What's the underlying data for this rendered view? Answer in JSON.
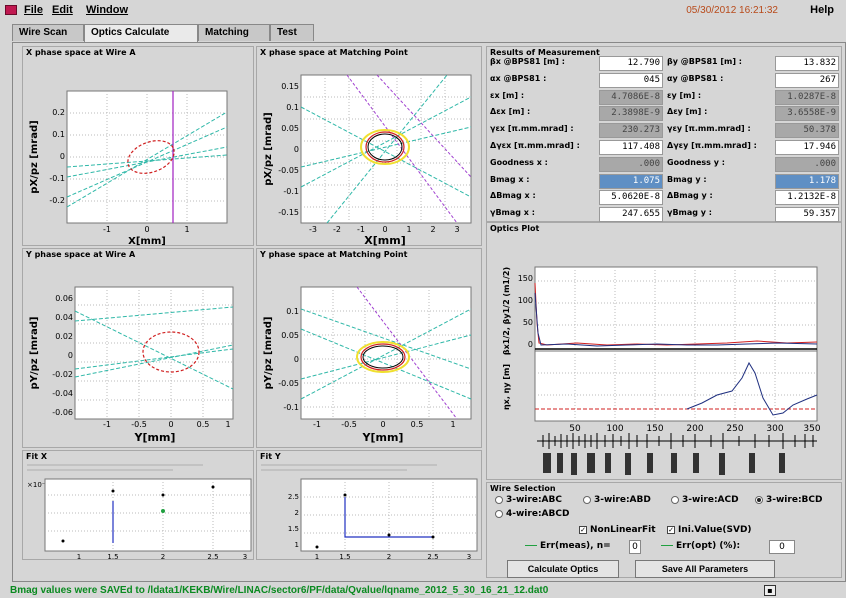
{
  "menubar": {
    "file": "File",
    "edit": "Edit",
    "window": "Window",
    "timestamp": "05/30/2012 16:21:32",
    "help": "Help"
  },
  "tabs": [
    "Wire Scan",
    "Optics Calculate",
    "Matching",
    "Test"
  ],
  "active_tab": "Optics Calculate",
  "plots": {
    "xa": {
      "title": "X phase space at Wire A",
      "xlabel": "X[mm]",
      "ylabel": "pX/pz [mrad]",
      "yticks": [
        "0.2",
        "0.1",
        "0",
        "-0.1",
        "-0.2"
      ],
      "xticks": [
        "-1",
        "0",
        "1"
      ]
    },
    "xm": {
      "title": "X phase space at Matching Point",
      "xlabel": "X[mm]",
      "ylabel": "pX/pz [mrad]",
      "yticks": [
        "0.15",
        "0.1",
        "0.05",
        "0",
        "-0.05",
        "-0.1",
        "-0.15"
      ],
      "xticks": [
        "-3",
        "-2",
        "-1",
        "0",
        "1",
        "2",
        "3"
      ]
    },
    "ya": {
      "title": "Y phase space at Wire A",
      "xlabel": "Y[mm]",
      "ylabel": "pY/pz [mrad]",
      "yticks": [
        "0.06",
        "0.04",
        "0.02",
        "0",
        "-0.02",
        "-0.04",
        "-0.06"
      ],
      "xticks": [
        "-1",
        "-0.5",
        "0",
        "0.5",
        "1"
      ]
    },
    "ym": {
      "title": "Y phase space at Matching Point",
      "xlabel": "Y[mm]",
      "ylabel": "pY/pz [mrad]",
      "yticks": [
        "0.1",
        "0.05",
        "0",
        "-0.05",
        "-0.1"
      ],
      "xticks": [
        "-1",
        "-0.5",
        "0",
        "0.5",
        "1"
      ]
    },
    "fitx": {
      "title": "Fit X",
      "xticks": [
        "1",
        "1.5",
        "2",
        "2.5",
        "3"
      ]
    },
    "fity": {
      "title": "Fit Y",
      "yticks": [
        "2.5",
        "2",
        "1.5",
        "1"
      ],
      "xticks": [
        "1",
        "1.5",
        "2",
        "2.5",
        "3"
      ]
    }
  },
  "results": {
    "title": "Results of Measurement",
    "rows": [
      {
        "lx": "βx @BPS81 [m] :",
        "vx": "12.790",
        "ly": "βy @BPS81 [m] :",
        "vy": "13.832",
        "cx": "",
        "cy": ""
      },
      {
        "lx": "αx @BPS81 :",
        "vx": "045",
        "ly": "αy @BPS81 :",
        "vy": "267",
        "cx": "",
        "cy": ""
      },
      {
        "lx": "εx [m] :",
        "vx": "4.7086E-8",
        "ly": "εy [m] :",
        "vy": "1.0287E-8",
        "cx": "grey",
        "cy": "grey"
      },
      {
        "lx": "Δεx [m] :",
        "vx": "2.3898E-9",
        "ly": "Δεy [m] :",
        "vy": "3.6558E-9",
        "cx": "grey",
        "cy": "grey"
      },
      {
        "lx": "γεx [π.mm.mrad] :",
        "vx": "230.273",
        "ly": "γεy [π.mm.mrad] :",
        "vy": "50.378",
        "cx": "grey",
        "cy": "grey"
      },
      {
        "lx": "Δγεx [π.mm.mrad] :",
        "vx": "117.408",
        "ly": "Δγεy [π.mm.mrad] :",
        "vy": "17.946",
        "cx": "",
        "cy": ""
      },
      {
        "lx": "Goodness x :",
        "vx": ".000",
        "ly": "Goodness y :",
        "vy": ".000",
        "cx": "grey",
        "cy": "grey"
      },
      {
        "lx": "Bmag x :",
        "vx": "1.075",
        "ly": "Bmag y :",
        "vy": "1.178",
        "cx": "blue",
        "cy": "blue"
      },
      {
        "lx": "ΔBmag x :",
        "vx": "5.0620E-8",
        "ly": "ΔBmag y :",
        "vy": "1.2132E-8",
        "cx": "",
        "cy": ""
      },
      {
        "lx": "γBmag x :",
        "vx": "247.655",
        "ly": "γBmag y :",
        "vy": "59.357",
        "cx": "",
        "cy": ""
      }
    ]
  },
  "optics_plot": {
    "title": "Optics Plot",
    "ylabel_top": "βx1/2, βy1/2 (m1/2)",
    "ylabel_bot": "ηx, ηy [m]",
    "yticks_top": [
      "150",
      "100",
      "50",
      "0"
    ],
    "xticks": [
      "50",
      "100",
      "150",
      "200",
      "250",
      "300",
      "350"
    ]
  },
  "wire_selection": {
    "title": "Wire Selection",
    "options": [
      "3-wire:ABC",
      "3-wire:ABD",
      "3-wire:ACD",
      "3-wire:BCD",
      "4-wire:ABCD"
    ],
    "selected": "3-wire:BCD",
    "nonlinear_label": "NonLinearFit",
    "inivalue_label": "Ini.Value(SVD)",
    "err_meas_label": "Err(meas), n=",
    "err_meas_value": "0",
    "err_opt_label": "Err(opt) (%):",
    "err_opt_value": "0",
    "calc_button": "Calculate Optics",
    "save_button": "Save All Parameters"
  },
  "status": "Bmag values were SAVEd to /ldata1/KEKB/Wire/LINAC/sector6/PF/data/Qvalue/lqname_2012_5_30_16_21_12.dat0"
}
